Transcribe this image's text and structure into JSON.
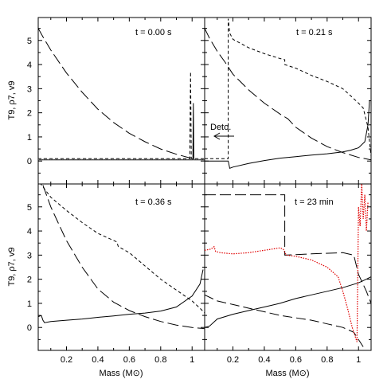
{
  "chart_data": {
    "type": "line",
    "xlabel": "Mass (M⊙)",
    "ylabel": "T9, ρ7, v9",
    "xlim": [
      0.02,
      1.08
    ],
    "ylim": [
      -0.95,
      5.95
    ],
    "xticks": [
      "0.2",
      "0.4",
      "0.6",
      "0.8",
      "1"
    ],
    "yticks": [
      "0",
      "1",
      "2",
      "3",
      "4",
      "5"
    ],
    "annotation": "Deto.",
    "panels": [
      {
        "time_label": "t = 0.00 s",
        "series": [
          {
            "style": "long-dash",
            "color": "#000000",
            "points": [
              [
                0.02,
                5.5
              ],
              [
                0.05,
                5.15
              ],
              [
                0.1,
                4.6
              ],
              [
                0.2,
                3.65
              ],
              [
                0.3,
                2.85
              ],
              [
                0.4,
                2.15
              ],
              [
                0.5,
                1.6
              ],
              [
                0.6,
                1.15
              ],
              [
                0.7,
                0.8
              ],
              [
                0.8,
                0.5
              ],
              [
                0.9,
                0.28
              ],
              [
                0.98,
                0.14
              ],
              [
                1.0,
                0.12
              ],
              [
                1.02,
                0.1
              ]
            ]
          },
          {
            "style": "short-dash",
            "color": "#000000",
            "points": [
              [
                0.02,
                0.1
              ],
              [
                0.98,
                0.1
              ],
              [
                0.985,
                0.1
              ],
              [
                0.99,
                3.7
              ],
              [
                0.995,
                0.1
              ],
              [
                1.08,
                0.1
              ]
            ]
          },
          {
            "style": "solid",
            "color": "#000000",
            "points": [
              [
                0.02,
                0.05
              ],
              [
                0.98,
                0.05
              ],
              [
                1.005,
                0.05
              ],
              [
                1.008,
                2.4
              ],
              [
                1.011,
                0.05
              ],
              [
                1.08,
                0.05
              ]
            ]
          },
          {
            "style": "dot",
            "color": "#808080",
            "points": [
              [
                0.02,
                0.07
              ],
              [
                1.08,
                0.07
              ]
            ]
          }
        ]
      },
      {
        "time_label": "t = 0.21 s",
        "series": [
          {
            "style": "long-dash",
            "color": "#000000",
            "points": [
              [
                0.02,
                5.5
              ],
              [
                0.05,
                5.1
              ],
              [
                0.1,
                4.55
              ],
              [
                0.15,
                4.1
              ],
              [
                0.2,
                3.6
              ],
              [
                0.3,
                2.95
              ],
              [
                0.4,
                2.4
              ],
              [
                0.5,
                1.95
              ],
              [
                0.55,
                1.75
              ],
              [
                0.6,
                1.4
              ],
              [
                0.7,
                0.95
              ],
              [
                0.8,
                0.6
              ],
              [
                0.9,
                0.35
              ],
              [
                1.0,
                0.15
              ],
              [
                1.08,
                0.05
              ]
            ]
          },
          {
            "style": "short-dash",
            "color": "#000000",
            "points": [
              [
                0.02,
                0.1
              ],
              [
                0.17,
                0.1
              ],
              [
                0.17,
                5.9
              ],
              [
                0.18,
                5.3
              ],
              [
                0.2,
                5.05
              ],
              [
                0.3,
                4.7
              ],
              [
                0.4,
                4.45
              ],
              [
                0.5,
                4.25
              ],
              [
                0.53,
                4.2
              ],
              [
                0.53,
                4.0
              ],
              [
                0.6,
                3.85
              ],
              [
                0.7,
                3.55
              ],
              [
                0.8,
                3.3
              ],
              [
                0.9,
                3.0
              ],
              [
                0.95,
                2.7
              ],
              [
                1.0,
                2.4
              ],
              [
                1.03,
                2.2
              ],
              [
                1.06,
                1.4
              ],
              [
                1.08,
                0.2
              ]
            ]
          },
          {
            "style": "solid",
            "color": "#000000",
            "points": [
              [
                0.02,
                0.0
              ],
              [
                0.17,
                0.0
              ],
              [
                0.18,
                -0.3
              ],
              [
                0.2,
                -0.25
              ],
              [
                0.3,
                -0.1
              ],
              [
                0.4,
                0.02
              ],
              [
                0.5,
                0.12
              ],
              [
                0.6,
                0.18
              ],
              [
                0.7,
                0.25
              ],
              [
                0.8,
                0.3
              ],
              [
                0.9,
                0.38
              ],
              [
                0.95,
                0.45
              ],
              [
                1.0,
                0.55
              ],
              [
                1.04,
                0.8
              ],
              [
                1.06,
                1.5
              ],
              [
                1.07,
                2.5
              ]
            ]
          }
        ]
      },
      {
        "time_label": "t = 0.36 s",
        "series": [
          {
            "style": "long-dash",
            "color": "#000000",
            "points": [
              [
                0.05,
                5.9
              ],
              [
                0.1,
                5.0
              ],
              [
                0.15,
                4.3
              ],
              [
                0.2,
                3.6
              ],
              [
                0.3,
                2.5
              ],
              [
                0.4,
                1.6
              ],
              [
                0.5,
                1.05
              ],
              [
                0.6,
                0.7
              ],
              [
                0.7,
                0.45
              ],
              [
                0.8,
                0.25
              ],
              [
                0.9,
                0.1
              ],
              [
                1.0,
                0.0
              ],
              [
                1.08,
                -0.05
              ]
            ]
          },
          {
            "style": "short-dash",
            "color": "#000000",
            "points": [
              [
                0.03,
                6.0
              ],
              [
                0.1,
                5.4
              ],
              [
                0.2,
                4.85
              ],
              [
                0.3,
                4.35
              ],
              [
                0.4,
                3.9
              ],
              [
                0.52,
                3.55
              ],
              [
                0.53,
                3.35
              ],
              [
                0.6,
                3.1
              ],
              [
                0.7,
                2.55
              ],
              [
                0.8,
                2.0
              ],
              [
                0.9,
                1.55
              ],
              [
                1.0,
                1.1
              ],
              [
                1.05,
                0.8
              ],
              [
                1.08,
                0.6
              ]
            ]
          },
          {
            "style": "solid",
            "color": "#000000",
            "points": [
              [
                0.02,
                0.45
              ],
              [
                0.04,
                0.5
              ],
              [
                0.05,
                0.3
              ],
              [
                0.06,
                0.2
              ],
              [
                0.1,
                0.25
              ],
              [
                0.2,
                0.3
              ],
              [
                0.3,
                0.35
              ],
              [
                0.4,
                0.42
              ],
              [
                0.5,
                0.48
              ],
              [
                0.6,
                0.55
              ],
              [
                0.7,
                0.6
              ],
              [
                0.8,
                0.68
              ],
              [
                0.9,
                0.85
              ],
              [
                1.0,
                1.3
              ],
              [
                1.05,
                1.8
              ],
              [
                1.07,
                2.4
              ]
            ]
          }
        ]
      },
      {
        "time_label": "t = 23 min",
        "series": [
          {
            "style": "long-dash",
            "color": "#000000",
            "points": [
              [
                0.02,
                5.5
              ],
              [
                0.53,
                5.5
              ],
              [
                0.53,
                3.0
              ],
              [
                0.7,
                3.05
              ],
              [
                0.9,
                3.1
              ],
              [
                0.97,
                3.0
              ],
              [
                1.0,
                2.2
              ],
              [
                1.05,
                1.5
              ],
              [
                1.08,
                1.0
              ]
            ]
          },
          {
            "style": "long-dash-thin",
            "color": "#000000",
            "points": [
              [
                0.02,
                1.35
              ],
              [
                0.1,
                1.1
              ],
              [
                0.2,
                0.95
              ],
              [
                0.3,
                0.8
              ],
              [
                0.4,
                0.65
              ],
              [
                0.5,
                0.5
              ],
              [
                0.55,
                0.45
              ],
              [
                0.6,
                0.4
              ],
              [
                0.7,
                0.3
              ],
              [
                0.8,
                0.15
              ],
              [
                0.9,
                0.0
              ],
              [
                0.97,
                -0.2
              ],
              [
                1.0,
                -0.5
              ],
              [
                1.03,
                -0.8
              ]
            ]
          },
          {
            "style": "solid",
            "color": "#000000",
            "points": [
              [
                0.02,
                0.0
              ],
              [
                0.05,
                0.05
              ],
              [
                0.1,
                0.35
              ],
              [
                0.2,
                0.55
              ],
              [
                0.3,
                0.7
              ],
              [
                0.4,
                0.85
              ],
              [
                0.5,
                1.0
              ],
              [
                0.6,
                1.2
              ],
              [
                0.7,
                1.35
              ],
              [
                0.8,
                1.5
              ],
              [
                0.9,
                1.65
              ],
              [
                1.0,
                1.85
              ],
              [
                1.05,
                2.0
              ],
              [
                1.08,
                2.1
              ]
            ]
          },
          {
            "style": "dot",
            "color": "#e00000",
            "points": [
              [
                0.02,
                3.2
              ],
              [
                0.06,
                3.25
              ],
              [
                0.08,
                3.35
              ],
              [
                0.09,
                3.15
              ],
              [
                0.12,
                3.1
              ],
              [
                0.2,
                3.05
              ],
              [
                0.3,
                3.1
              ],
              [
                0.4,
                3.2
              ],
              [
                0.5,
                3.3
              ],
              [
                0.52,
                3.25
              ],
              [
                0.54,
                3.0
              ],
              [
                0.6,
                2.95
              ],
              [
                0.7,
                2.8
              ],
              [
                0.8,
                2.5
              ],
              [
                0.87,
                2.1
              ],
              [
                0.9,
                1.5
              ],
              [
                0.93,
                0.8
              ],
              [
                0.96,
                0.0
              ],
              [
                0.99,
                -0.6
              ],
              [
                1.0,
                5.0
              ],
              [
                1.01,
                4.2
              ],
              [
                1.02,
                6.0
              ],
              [
                1.03,
                4.5
              ],
              [
                1.04,
                5.5
              ],
              [
                1.05,
                4.0
              ],
              [
                1.06,
                5.2
              ]
            ]
          }
        ]
      }
    ]
  }
}
